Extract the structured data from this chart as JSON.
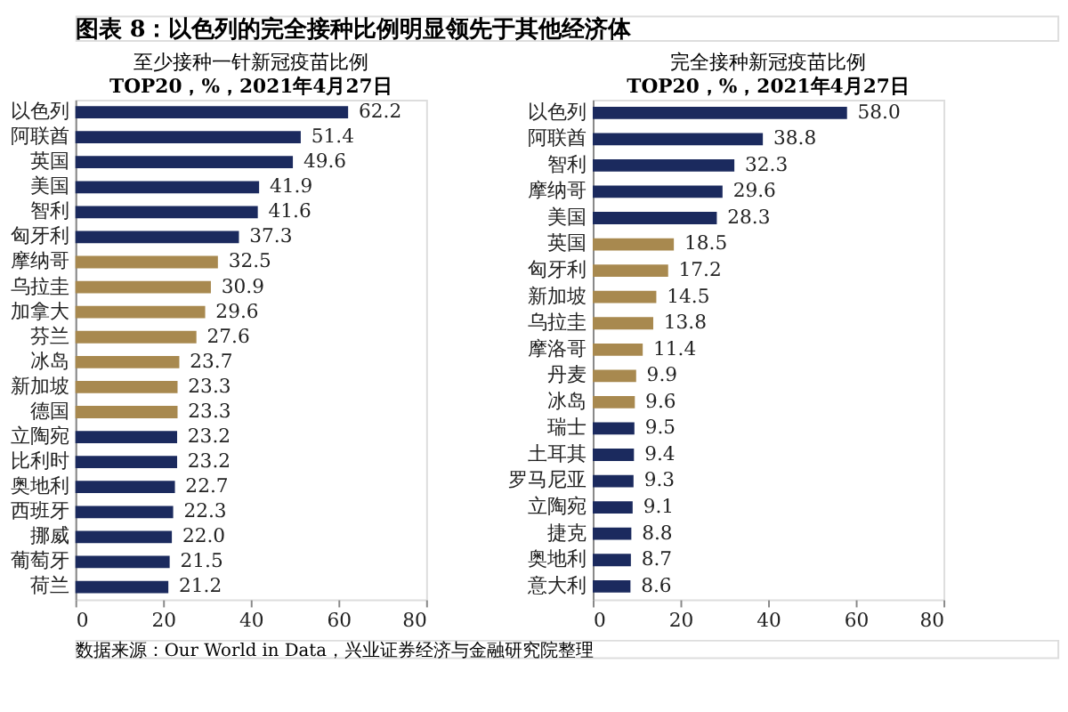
{
  "chart_data": [
    {
      "type": "bar",
      "orientation": "horizontal",
      "title": "至少接种一针新冠疫苗比例",
      "subtitle": "TOP20，%，2021年4月27日",
      "annotations": [
        "图表 8：以色列的完全接种比例明显领先于其他经济体",
        "数据来源：Our World in Data，兴业证券经济与金融研究院整理"
      ],
      "categories": [
        "以色列",
        "阿联酋",
        "英国",
        "美国",
        "智利",
        "匈牙利",
        "摩纳哥",
        "乌拉圭",
        "加拿大",
        "芬兰",
        "冰岛",
        "新加坡",
        "德国",
        "立陶宛",
        "比利时",
        "奥地利",
        "西班牙",
        "挪威",
        "葡萄牙",
        "荷兰"
      ],
      "values": [
        62.2,
        51.4,
        49.6,
        41.9,
        41.6,
        37.3,
        32.5,
        30.9,
        29.6,
        27.6,
        23.7,
        23.3,
        23.3,
        23.2,
        23.2,
        22.7,
        22.3,
        22.0,
        21.5,
        21.2
      ],
      "colors": [
        "#1b2a5e",
        "#1b2a5e",
        "#1b2a5e",
        "#1b2a5e",
        "#1b2a5e",
        "#1b2a5e",
        "#a8894f",
        "#a8894f",
        "#a8894f",
        "#a8894f",
        "#a8894f",
        "#a8894f",
        "#a8894f",
        "#1b2a5e",
        "#1b2a5e",
        "#1b2a5e",
        "#1b2a5e",
        "#1b2a5e",
        "#1b2a5e",
        "#1b2a5e"
      ],
      "value_labels": [
        "62.2",
        "51.4",
        "49.6",
        "41.9",
        "41.6",
        "37.3",
        "32.5",
        "30.9",
        "29.6",
        "27.6",
        "23.7",
        "23.3",
        "23.3",
        "23.2",
        "23.2",
        "22.7",
        "22.3",
        "22.0",
        "21.5",
        "21.2"
      ],
      "xlim": [
        0,
        80
      ],
      "xticks": [
        0,
        20,
        40,
        60,
        80
      ],
      "grid": false
    },
    {
      "type": "bar",
      "orientation": "horizontal",
      "title": "完全接种新冠疫苗比例",
      "subtitle": "TOP20，%，2021年4月27日",
      "categories": [
        "以色列",
        "阿联酋",
        "智利",
        "摩纳哥",
        "美国",
        "英国",
        "匈牙利",
        "新加坡",
        "乌拉圭",
        "摩洛哥",
        "丹麦",
        "冰岛",
        "瑞士",
        "土耳其",
        "罗马尼亚",
        "立陶宛",
        "捷克",
        "奥地利",
        "意大利"
      ],
      "values": [
        58.0,
        38.8,
        32.3,
        29.6,
        28.3,
        18.5,
        17.2,
        14.5,
        13.8,
        11.4,
        9.9,
        9.6,
        9.5,
        9.4,
        9.3,
        9.1,
        8.8,
        8.7,
        8.6
      ],
      "colors": [
        "#1b2a5e",
        "#1b2a5e",
        "#1b2a5e",
        "#1b2a5e",
        "#1b2a5e",
        "#a8894f",
        "#a8894f",
        "#a8894f",
        "#a8894f",
        "#a8894f",
        "#a8894f",
        "#a8894f",
        "#1b2a5e",
        "#1b2a5e",
        "#1b2a5e",
        "#1b2a5e",
        "#1b2a5e",
        "#1b2a5e",
        "#1b2a5e"
      ],
      "value_labels": [
        "58.0",
        "38.8",
        "32.3",
        "29.6",
        "28.3",
        "18.5",
        "17.2",
        "14.5",
        "13.8",
        "11.4",
        "9.9",
        "9.6",
        "9.5",
        "9.4",
        "9.3",
        "9.1",
        "8.8",
        "8.7",
        "8.6"
      ],
      "xlim": [
        0,
        80
      ],
      "xticks": [
        0,
        20,
        40,
        60,
        80
      ],
      "grid": false
    }
  ]
}
